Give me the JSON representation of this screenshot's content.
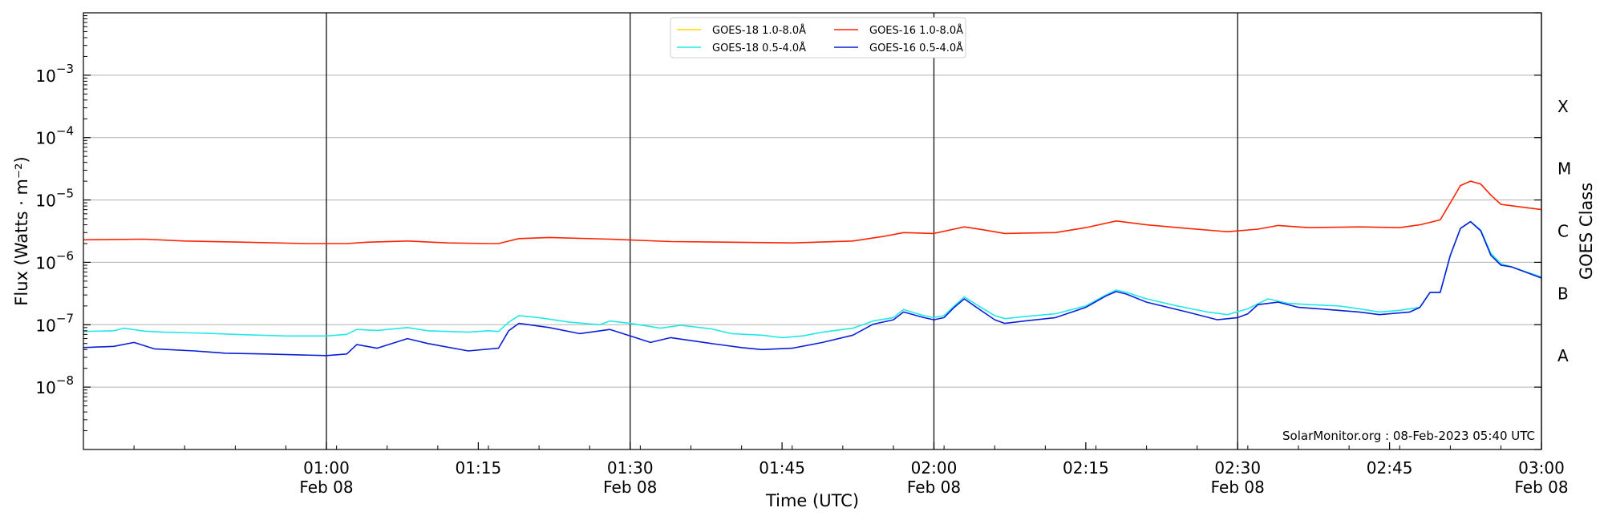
{
  "chart_data": {
    "type": "line",
    "xlabel": "Time (UTC)",
    "ylabel": "Flux (Watts · m⁻²)",
    "y2label": "GOES Class",
    "yscale": "log",
    "ylim": [
      1e-09,
      0.01
    ],
    "x_range": [
      "2023-02-08 00:36",
      "2023-02-08 03:00"
    ],
    "x_ticks": [
      {
        "time": "2023-02-08 01:00",
        "line1": "01:00",
        "line2": "Feb 08"
      },
      {
        "time": "2023-02-08 01:15",
        "line1": "01:15",
        "line2": ""
      },
      {
        "time": "2023-02-08 01:30",
        "line1": "01:30",
        "line2": "Feb 08"
      },
      {
        "time": "2023-02-08 01:45",
        "line1": "01:45",
        "line2": ""
      },
      {
        "time": "2023-02-08 02:00",
        "line1": "02:00",
        "line2": "Feb 08"
      },
      {
        "time": "2023-02-08 02:15",
        "line1": "02:15",
        "line2": ""
      },
      {
        "time": "2023-02-08 02:30",
        "line1": "02:30",
        "line2": "Feb 08"
      },
      {
        "time": "2023-02-08 02:45",
        "line1": "02:45",
        "line2": ""
      },
      {
        "time": "2023-02-08 03:00",
        "line1": "03:00",
        "line2": "Feb 08"
      }
    ],
    "y_ticks": [
      {
        "value": 1e-08,
        "base": "10",
        "exp": "−8"
      },
      {
        "value": 1e-07,
        "base": "10",
        "exp": "−7"
      },
      {
        "value": 1e-06,
        "base": "10",
        "exp": "−6"
      },
      {
        "value": 1e-05,
        "base": "10",
        "exp": "−5"
      },
      {
        "value": 0.0001,
        "base": "10",
        "exp": "−4"
      },
      {
        "value": 0.001,
        "base": "10",
        "exp": "−3"
      }
    ],
    "goes_classes": [
      {
        "label": "A",
        "value": 3.162e-08
      },
      {
        "label": "B",
        "value": 3.162e-07
      },
      {
        "label": "C",
        "value": 3.162e-06
      },
      {
        "label": "M",
        "value": 3.162e-05
      },
      {
        "label": "X",
        "value": 0.0003162
      }
    ],
    "vlines": [
      "2023-02-08 01:00",
      "2023-02-08 01:30",
      "2023-02-08 02:00",
      "2023-02-08 02:30",
      "2023-02-08 03:00"
    ],
    "grid": "horizontal",
    "legend_position": "top-center",
    "credit": "SolarMonitor.org : 08-Feb-2023 05:40 UTC",
    "series": [
      {
        "name": "GOES-18 1.0-8.0Å",
        "color": "#ffd700",
        "points": []
      },
      {
        "name": "GOES-18 0.5-4.0Å",
        "color": "#22e8e8",
        "points": [
          [
            "2023-02-08 00:36",
            7.8e-08
          ],
          [
            "2023-02-08 00:39",
            8e-08
          ],
          [
            "2023-02-08 00:40",
            8.8e-08
          ],
          [
            "2023-02-08 00:42",
            7.9e-08
          ],
          [
            "2023-02-08 00:44",
            7.6e-08
          ],
          [
            "2023-02-08 00:48",
            7.3e-08
          ],
          [
            "2023-02-08 00:52",
            6.9e-08
          ],
          [
            "2023-02-08 00:56",
            6.6e-08
          ],
          [
            "2023-02-08 01:00",
            6.6e-08
          ],
          [
            "2023-02-08 01:02",
            7e-08
          ],
          [
            "2023-02-08 01:03",
            8.4e-08
          ],
          [
            "2023-02-08 01:05",
            8.1e-08
          ],
          [
            "2023-02-08 01:08",
            9e-08
          ],
          [
            "2023-02-08 01:10",
            8e-08
          ],
          [
            "2023-02-08 01:14",
            7.6e-08
          ],
          [
            "2023-02-08 01:16",
            8e-08
          ],
          [
            "2023-02-08 01:17",
            7.8e-08
          ],
          [
            "2023-02-08 01:18",
            1.1e-07
          ],
          [
            "2023-02-08 01:19",
            1.4e-07
          ],
          [
            "2023-02-08 01:21",
            1.3e-07
          ],
          [
            "2023-02-08 01:24",
            1.1e-07
          ],
          [
            "2023-02-08 01:27",
            1e-07
          ],
          [
            "2023-02-08 01:28",
            1.15e-07
          ],
          [
            "2023-02-08 01:30",
            1.05e-07
          ],
          [
            "2023-02-08 01:33",
            8.8e-08
          ],
          [
            "2023-02-08 01:35",
            9.8e-08
          ],
          [
            "2023-02-08 01:38",
            8.6e-08
          ],
          [
            "2023-02-08 01:40",
            7.2e-08
          ],
          [
            "2023-02-08 01:43",
            6.8e-08
          ],
          [
            "2023-02-08 01:45",
            6.2e-08
          ],
          [
            "2023-02-08 01:47",
            6.6e-08
          ],
          [
            "2023-02-08 01:49",
            7.6e-08
          ],
          [
            "2023-02-08 01:52",
            8.8e-08
          ],
          [
            "2023-02-08 01:54",
            1.15e-07
          ],
          [
            "2023-02-08 01:56",
            1.3e-07
          ],
          [
            "2023-02-08 01:57",
            1.75e-07
          ],
          [
            "2023-02-08 01:59",
            1.4e-07
          ],
          [
            "2023-02-08 02:00",
            1.3e-07
          ],
          [
            "2023-02-08 02:01",
            1.4e-07
          ],
          [
            "2023-02-08 02:02",
            2e-07
          ],
          [
            "2023-02-08 02:03",
            2.8e-07
          ],
          [
            "2023-02-08 02:04",
            2.2e-07
          ],
          [
            "2023-02-08 02:06",
            1.4e-07
          ],
          [
            "2023-02-08 02:07",
            1.25e-07
          ],
          [
            "2023-02-08 02:09",
            1.35e-07
          ],
          [
            "2023-02-08 02:12",
            1.5e-07
          ],
          [
            "2023-02-08 02:15",
            2e-07
          ],
          [
            "2023-02-08 02:17",
            3e-07
          ],
          [
            "2023-02-08 02:18",
            3.6e-07
          ],
          [
            "2023-02-08 02:19",
            3.3e-07
          ],
          [
            "2023-02-08 02:21",
            2.6e-07
          ],
          [
            "2023-02-08 02:24",
            2e-07
          ],
          [
            "2023-02-08 02:27",
            1.6e-07
          ],
          [
            "2023-02-08 02:29",
            1.45e-07
          ],
          [
            "2023-02-08 02:31",
            1.8e-07
          ],
          [
            "2023-02-08 02:33",
            2.6e-07
          ],
          [
            "2023-02-08 02:35",
            2.2e-07
          ],
          [
            "2023-02-08 02:37",
            2.1e-07
          ],
          [
            "2023-02-08 02:40",
            2e-07
          ],
          [
            "2023-02-08 02:42",
            1.8e-07
          ],
          [
            "2023-02-08 02:44",
            1.6e-07
          ],
          [
            "2023-02-08 02:46",
            1.7e-07
          ],
          [
            "2023-02-08 02:48",
            1.9e-07
          ],
          [
            "2023-02-08 02:49",
            3.3e-07
          ],
          [
            "2023-02-08 02:50",
            3.3e-07
          ],
          [
            "2023-02-08 02:51",
            1.3e-06
          ],
          [
            "2023-02-08 02:52",
            3.5e-06
          ],
          [
            "2023-02-08 02:53",
            4.5e-06
          ],
          [
            "2023-02-08 02:54",
            3.3e-06
          ],
          [
            "2023-02-08 02:55",
            1.4e-06
          ],
          [
            "2023-02-08 02:56",
            9.5e-07
          ],
          [
            "2023-02-08 02:57",
            8.5e-07
          ],
          [
            "2023-02-08 03:00",
            5.8e-07
          ]
        ]
      },
      {
        "name": "GOES-16 1.0-8.0Å",
        "color": "#ff2200",
        "points": [
          [
            "2023-02-08 00:36",
            2.3e-06
          ],
          [
            "2023-02-08 00:42",
            2.35e-06
          ],
          [
            "2023-02-08 00:46",
            2.2e-06
          ],
          [
            "2023-02-08 00:52",
            2.1e-06
          ],
          [
            "2023-02-08 00:58",
            2e-06
          ],
          [
            "2023-02-08 01:02",
            2e-06
          ],
          [
            "2023-02-08 01:04",
            2.1e-06
          ],
          [
            "2023-02-08 01:08",
            2.2e-06
          ],
          [
            "2023-02-08 01:12",
            2.05e-06
          ],
          [
            "2023-02-08 01:16",
            2e-06
          ],
          [
            "2023-02-08 01:17",
            2e-06
          ],
          [
            "2023-02-08 01:19",
            2.4e-06
          ],
          [
            "2023-02-08 01:22",
            2.5e-06
          ],
          [
            "2023-02-08 01:28",
            2.35e-06
          ],
          [
            "2023-02-08 01:34",
            2.15e-06
          ],
          [
            "2023-02-08 01:40",
            2.1e-06
          ],
          [
            "2023-02-08 01:46",
            2.05e-06
          ],
          [
            "2023-02-08 01:52",
            2.2e-06
          ],
          [
            "2023-02-08 01:55",
            2.6e-06
          ],
          [
            "2023-02-08 01:57",
            3e-06
          ],
          [
            "2023-02-08 02:00",
            2.9e-06
          ],
          [
            "2023-02-08 02:03",
            3.7e-06
          ],
          [
            "2023-02-08 02:05",
            3.3e-06
          ],
          [
            "2023-02-08 02:07",
            2.9e-06
          ],
          [
            "2023-02-08 02:12",
            3e-06
          ],
          [
            "2023-02-08 02:15",
            3.6e-06
          ],
          [
            "2023-02-08 02:18",
            4.6e-06
          ],
          [
            "2023-02-08 02:21",
            4e-06
          ],
          [
            "2023-02-08 02:25",
            3.5e-06
          ],
          [
            "2023-02-08 02:29",
            3.1e-06
          ],
          [
            "2023-02-08 02:32",
            3.4e-06
          ],
          [
            "2023-02-08 02:34",
            3.9e-06
          ],
          [
            "2023-02-08 02:37",
            3.6e-06
          ],
          [
            "2023-02-08 02:42",
            3.7e-06
          ],
          [
            "2023-02-08 02:46",
            3.6e-06
          ],
          [
            "2023-02-08 02:48",
            4e-06
          ],
          [
            "2023-02-08 02:50",
            4.8e-06
          ],
          [
            "2023-02-08 02:51",
            9e-06
          ],
          [
            "2023-02-08 02:52",
            1.7e-05
          ],
          [
            "2023-02-08 02:53",
            2e-05
          ],
          [
            "2023-02-08 02:54",
            1.8e-05
          ],
          [
            "2023-02-08 02:55",
            1.2e-05
          ],
          [
            "2023-02-08 02:56",
            8.5e-06
          ],
          [
            "2023-02-08 03:00",
            7e-06
          ]
        ]
      },
      {
        "name": "GOES-16 0.5-4.0Å",
        "color": "#0b1fd9",
        "points": [
          [
            "2023-02-08 00:36",
            4.3e-08
          ],
          [
            "2023-02-08 00:39",
            4.5e-08
          ],
          [
            "2023-02-08 00:41",
            5.2e-08
          ],
          [
            "2023-02-08 00:43",
            4.1e-08
          ],
          [
            "2023-02-08 00:47",
            3.8e-08
          ],
          [
            "2023-02-08 00:50",
            3.5e-08
          ],
          [
            "2023-02-08 00:54",
            3.4e-08
          ],
          [
            "2023-02-08 01:00",
            3.2e-08
          ],
          [
            "2023-02-08 01:02",
            3.4e-08
          ],
          [
            "2023-02-08 01:03",
            4.8e-08
          ],
          [
            "2023-02-08 01:05",
            4.2e-08
          ],
          [
            "2023-02-08 01:08",
            6e-08
          ],
          [
            "2023-02-08 01:10",
            5e-08
          ],
          [
            "2023-02-08 01:14",
            3.8e-08
          ],
          [
            "2023-02-08 01:17",
            4.2e-08
          ],
          [
            "2023-02-08 01:18",
            8e-08
          ],
          [
            "2023-02-08 01:19",
            1.05e-07
          ],
          [
            "2023-02-08 01:22",
            9e-08
          ],
          [
            "2023-02-08 01:25",
            7.2e-08
          ],
          [
            "2023-02-08 01:28",
            8.4e-08
          ],
          [
            "2023-02-08 01:30",
            6.6e-08
          ],
          [
            "2023-02-08 01:32",
            5.2e-08
          ],
          [
            "2023-02-08 01:34",
            6.2e-08
          ],
          [
            "2023-02-08 01:38",
            5e-08
          ],
          [
            "2023-02-08 01:41",
            4.3e-08
          ],
          [
            "2023-02-08 01:43",
            4e-08
          ],
          [
            "2023-02-08 01:46",
            4.2e-08
          ],
          [
            "2023-02-08 01:49",
            5.2e-08
          ],
          [
            "2023-02-08 01:52",
            6.8e-08
          ],
          [
            "2023-02-08 01:54",
            1.02e-07
          ],
          [
            "2023-02-08 01:56",
            1.2e-07
          ],
          [
            "2023-02-08 01:57",
            1.6e-07
          ],
          [
            "2023-02-08 01:59",
            1.3e-07
          ],
          [
            "2023-02-08 02:00",
            1.2e-07
          ],
          [
            "2023-02-08 02:01",
            1.3e-07
          ],
          [
            "2023-02-08 02:02",
            1.9e-07
          ],
          [
            "2023-02-08 02:03",
            2.6e-07
          ],
          [
            "2023-02-08 02:04",
            2e-07
          ],
          [
            "2023-02-08 02:06",
            1.2e-07
          ],
          [
            "2023-02-08 02:07",
            1.05e-07
          ],
          [
            "2023-02-08 02:09",
            1.15e-07
          ],
          [
            "2023-02-08 02:12",
            1.3e-07
          ],
          [
            "2023-02-08 02:15",
            1.9e-07
          ],
          [
            "2023-02-08 02:17",
            2.9e-07
          ],
          [
            "2023-02-08 02:18",
            3.4e-07
          ],
          [
            "2023-02-08 02:19",
            3.1e-07
          ],
          [
            "2023-02-08 02:21",
            2.3e-07
          ],
          [
            "2023-02-08 02:25",
            1.6e-07
          ],
          [
            "2023-02-08 02:28",
            1.2e-07
          ],
          [
            "2023-02-08 02:30",
            1.3e-07
          ],
          [
            "2023-02-08 02:31",
            1.5e-07
          ],
          [
            "2023-02-08 02:32",
            2.1e-07
          ],
          [
            "2023-02-08 02:34",
            2.3e-07
          ],
          [
            "2023-02-08 02:36",
            1.9e-07
          ],
          [
            "2023-02-08 02:38",
            1.8e-07
          ],
          [
            "2023-02-08 02:42",
            1.6e-07
          ],
          [
            "2023-02-08 02:44",
            1.45e-07
          ],
          [
            "2023-02-08 02:47",
            1.6e-07
          ],
          [
            "2023-02-08 02:48",
            1.9e-07
          ],
          [
            "2023-02-08 02:49",
            3.3e-07
          ],
          [
            "2023-02-08 02:50",
            3.3e-07
          ],
          [
            "2023-02-08 02:51",
            1.3e-06
          ],
          [
            "2023-02-08 02:52",
            3.5e-06
          ],
          [
            "2023-02-08 02:53",
            4.5e-06
          ],
          [
            "2023-02-08 02:54",
            3.2e-06
          ],
          [
            "2023-02-08 02:55",
            1.3e-06
          ],
          [
            "2023-02-08 02:56",
            9e-07
          ],
          [
            "2023-02-08 02:57",
            8.5e-07
          ],
          [
            "2023-02-08 03:00",
            5.6e-07
          ]
        ]
      }
    ]
  }
}
